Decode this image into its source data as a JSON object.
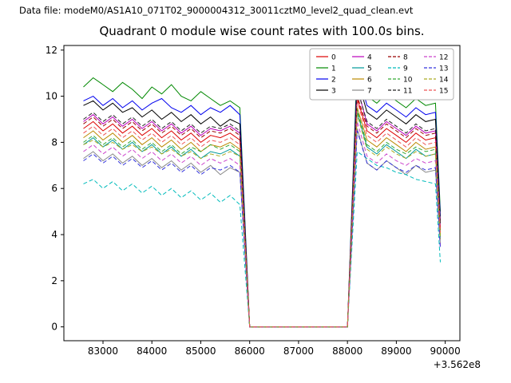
{
  "header": {
    "text": "Data file: modeM0/AS1A10_071T02_9000004312_30011cztM0_level2_quad_clean.evt"
  },
  "chart_data": {
    "type": "line",
    "title": "Quadrant 0 module wise count rates with 100.0s bins.",
    "xlabel": "",
    "ylabel": "",
    "x_offset_label": "+3.562e8",
    "xlim": [
      82200,
      90300
    ],
    "ylim": [
      -0.6,
      12.2
    ],
    "x_ticks": [
      83000,
      84000,
      85000,
      86000,
      87000,
      88000,
      89000,
      90000
    ],
    "y_ticks": [
      0,
      2,
      4,
      6,
      8,
      10,
      12
    ],
    "legend_position": "upper right",
    "grid": false,
    "x": [
      82600,
      82800,
      83000,
      83200,
      83400,
      83600,
      83800,
      84000,
      84200,
      84400,
      84600,
      84800,
      85000,
      85200,
      85400,
      85600,
      85800,
      86000,
      86200,
      86400,
      86600,
      86800,
      87000,
      87200,
      87400,
      87600,
      87800,
      88000,
      88200,
      88400,
      88600,
      88800,
      89000,
      89200,
      89400,
      89600,
      89800,
      89900
    ],
    "series": [
      {
        "name": "0",
        "color": "#dd0000",
        "dash": false,
        "values": [
          8.6,
          8.9,
          8.5,
          8.8,
          8.4,
          8.7,
          8.3,
          8.6,
          8.2,
          8.5,
          8.1,
          8.4,
          8.0,
          8.3,
          8.2,
          8.4,
          8.1,
          0,
          0,
          0,
          0,
          0,
          0,
          0,
          0,
          0,
          0,
          0,
          9.9,
          8.5,
          8.2,
          8.6,
          8.3,
          8.0,
          8.4,
          8.1,
          8.2,
          4.2
        ]
      },
      {
        "name": "1",
        "color": "#008800",
        "dash": false,
        "values": [
          10.4,
          10.8,
          10.5,
          10.2,
          10.6,
          10.3,
          9.9,
          10.4,
          10.1,
          10.5,
          10.0,
          9.8,
          10.2,
          9.9,
          9.6,
          9.8,
          9.5,
          0,
          0,
          0,
          0,
          0,
          0,
          0,
          0,
          0,
          0,
          0,
          11.5,
          10.0,
          9.7,
          10.1,
          9.8,
          9.5,
          9.9,
          9.6,
          9.7,
          5.0
        ]
      },
      {
        "name": "2",
        "color": "#0000ee",
        "dash": false,
        "values": [
          9.8,
          10.0,
          9.6,
          9.9,
          9.5,
          9.8,
          9.4,
          9.7,
          9.9,
          9.5,
          9.3,
          9.6,
          9.2,
          9.5,
          9.3,
          9.6,
          9.2,
          0,
          0,
          0,
          0,
          0,
          0,
          0,
          0,
          0,
          0,
          0,
          11.1,
          9.6,
          9.3,
          9.7,
          9.4,
          9.1,
          9.5,
          9.2,
          9.3,
          4.8
        ]
      },
      {
        "name": "3",
        "color": "#000000",
        "dash": false,
        "values": [
          9.6,
          9.8,
          9.4,
          9.7,
          9.3,
          9.5,
          9.1,
          9.4,
          9.0,
          9.3,
          8.9,
          9.2,
          8.8,
          9.1,
          8.7,
          9.0,
          8.8,
          0,
          0,
          0,
          0,
          0,
          0,
          0,
          0,
          0,
          0,
          0,
          10.8,
          9.3,
          9.0,
          9.4,
          9.1,
          8.8,
          9.2,
          8.9,
          9.0,
          4.6
        ]
      },
      {
        "name": "4",
        "color": "#bb00bb",
        "dash": false,
        "values": [
          8.9,
          9.2,
          8.8,
          9.1,
          8.7,
          9.0,
          8.6,
          8.9,
          8.5,
          8.8,
          8.4,
          8.7,
          8.3,
          8.6,
          8.5,
          8.7,
          8.4,
          0,
          0,
          0,
          0,
          0,
          0,
          0,
          0,
          0,
          0,
          0,
          10.4,
          8.8,
          8.5,
          8.9,
          8.6,
          8.3,
          8.7,
          8.4,
          8.5,
          4.4
        ]
      },
      {
        "name": "5",
        "color": "#009999",
        "dash": false,
        "values": [
          7.9,
          8.2,
          7.8,
          8.1,
          7.7,
          8.0,
          7.6,
          7.9,
          7.5,
          7.8,
          7.4,
          7.7,
          7.3,
          7.6,
          7.5,
          7.7,
          7.4,
          0,
          0,
          0,
          0,
          0,
          0,
          0,
          0,
          0,
          0,
          0,
          9.3,
          7.8,
          7.5,
          7.9,
          7.6,
          7.3,
          7.7,
          7.4,
          7.5,
          3.8
        ]
      },
      {
        "name": "6",
        "color": "#bb8800",
        "dash": false,
        "values": [
          8.2,
          8.5,
          8.1,
          8.4,
          8.0,
          8.3,
          7.9,
          8.2,
          7.8,
          8.1,
          7.7,
          8.0,
          7.6,
          7.9,
          7.8,
          8.0,
          7.7,
          0,
          0,
          0,
          0,
          0,
          0,
          0,
          0,
          0,
          0,
          0,
          9.5,
          8.1,
          7.8,
          8.2,
          7.9,
          7.6,
          8.0,
          7.7,
          7.8,
          4.0
        ]
      },
      {
        "name": "7",
        "color": "#888888",
        "dash": false,
        "values": [
          7.3,
          7.6,
          7.2,
          7.5,
          7.1,
          7.4,
          7.0,
          7.3,
          6.9,
          7.2,
          6.8,
          7.1,
          6.7,
          7.0,
          6.6,
          6.9,
          6.7,
          0,
          0,
          0,
          0,
          0,
          0,
          0,
          0,
          0,
          0,
          0,
          8.6,
          7.1,
          6.8,
          7.2,
          6.9,
          6.6,
          7.0,
          6.7,
          6.8,
          3.6
        ]
      },
      {
        "name": "8",
        "color": "#990000",
        "dash": true,
        "values": [
          8.8,
          9.1,
          8.7,
          9.0,
          8.6,
          8.9,
          8.5,
          8.8,
          8.4,
          8.7,
          8.3,
          8.6,
          8.2,
          8.5,
          8.4,
          8.6,
          8.3,
          0,
          0,
          0,
          0,
          0,
          0,
          0,
          0,
          0,
          0,
          0,
          10.0,
          8.7,
          8.4,
          8.8,
          8.5,
          8.2,
          8.6,
          8.3,
          8.4,
          4.3
        ]
      },
      {
        "name": "9",
        "color": "#00bbbb",
        "dash": true,
        "values": [
          6.2,
          6.4,
          6.0,
          6.3,
          5.9,
          6.2,
          5.8,
          6.1,
          5.7,
          6.0,
          5.6,
          5.9,
          5.5,
          5.8,
          5.4,
          5.7,
          5.3,
          0,
          0,
          0,
          0,
          0,
          0,
          0,
          0,
          0,
          0,
          0,
          7.6,
          7.3,
          7.0,
          6.9,
          6.7,
          6.6,
          6.4,
          6.3,
          6.2,
          2.8
        ]
      },
      {
        "name": "10",
        "color": "#33aa33",
        "dash": true,
        "values": [
          8.0,
          8.3,
          7.9,
          8.2,
          7.8,
          8.1,
          7.7,
          8.0,
          7.6,
          7.9,
          7.5,
          7.8,
          7.6,
          7.9,
          7.7,
          7.9,
          7.6,
          0,
          0,
          0,
          0,
          0,
          0,
          0,
          0,
          0,
          0,
          0,
          9.4,
          7.9,
          7.6,
          8.0,
          7.7,
          7.5,
          7.8,
          7.6,
          7.7,
          3.9
        ]
      },
      {
        "name": "11",
        "color": "#222222",
        "dash": true,
        "values": [
          9.0,
          9.3,
          8.9,
          9.2,
          8.8,
          9.1,
          8.7,
          9.0,
          8.6,
          8.9,
          8.5,
          8.8,
          8.4,
          8.7,
          8.6,
          8.8,
          8.5,
          0,
          0,
          0,
          0,
          0,
          0,
          0,
          0,
          0,
          0,
          0,
          10.3,
          8.9,
          8.6,
          9.0,
          8.7,
          8.4,
          8.8,
          8.5,
          8.6,
          4.5
        ]
      },
      {
        "name": "12",
        "color": "#cc44cc",
        "dash": true,
        "values": [
          7.6,
          7.9,
          7.5,
          7.8,
          7.4,
          7.7,
          7.3,
          7.6,
          7.2,
          7.5,
          7.1,
          7.4,
          7.0,
          7.3,
          7.1,
          7.3,
          7.0,
          0,
          0,
          0,
          0,
          0,
          0,
          0,
          0,
          0,
          0,
          0,
          8.9,
          7.4,
          7.1,
          7.5,
          7.2,
          7.0,
          7.3,
          7.1,
          7.2,
          3.5
        ]
      },
      {
        "name": "13",
        "color": "#3333dd",
        "dash": true,
        "values": [
          7.2,
          7.5,
          7.1,
          7.4,
          7.0,
          7.3,
          6.9,
          7.2,
          6.8,
          7.1,
          6.7,
          7.0,
          6.6,
          6.9,
          6.8,
          7.0,
          6.7,
          0,
          0,
          0,
          0,
          0,
          0,
          0,
          0,
          0,
          0,
          0,
          8.5,
          7.1,
          6.8,
          7.2,
          6.9,
          6.7,
          7.0,
          6.8,
          6.9,
          3.4
        ]
      },
      {
        "name": "14",
        "color": "#aaaa22",
        "dash": true,
        "values": [
          7.9,
          8.1,
          7.8,
          8.0,
          7.7,
          7.9,
          7.6,
          7.8,
          7.5,
          7.7,
          7.4,
          7.6,
          7.3,
          7.5,
          7.4,
          7.6,
          7.4,
          0,
          0,
          0,
          0,
          0,
          0,
          0,
          0,
          0,
          0,
          0,
          9.2,
          7.7,
          7.4,
          7.8,
          7.5,
          7.3,
          7.6,
          7.4,
          7.5,
          3.8
        ]
      },
      {
        "name": "15",
        "color": "#ee5555",
        "dash": true,
        "values": [
          8.4,
          8.7,
          8.3,
          8.6,
          8.2,
          8.5,
          8.1,
          8.4,
          8.0,
          8.3,
          7.9,
          8.2,
          7.8,
          8.1,
          8.0,
          8.2,
          7.9,
          0,
          0,
          0,
          0,
          0,
          0,
          0,
          0,
          0,
          0,
          0,
          9.8,
          8.3,
          8.0,
          8.4,
          8.1,
          7.8,
          8.2,
          7.9,
          8.0,
          4.1
        ]
      }
    ]
  }
}
